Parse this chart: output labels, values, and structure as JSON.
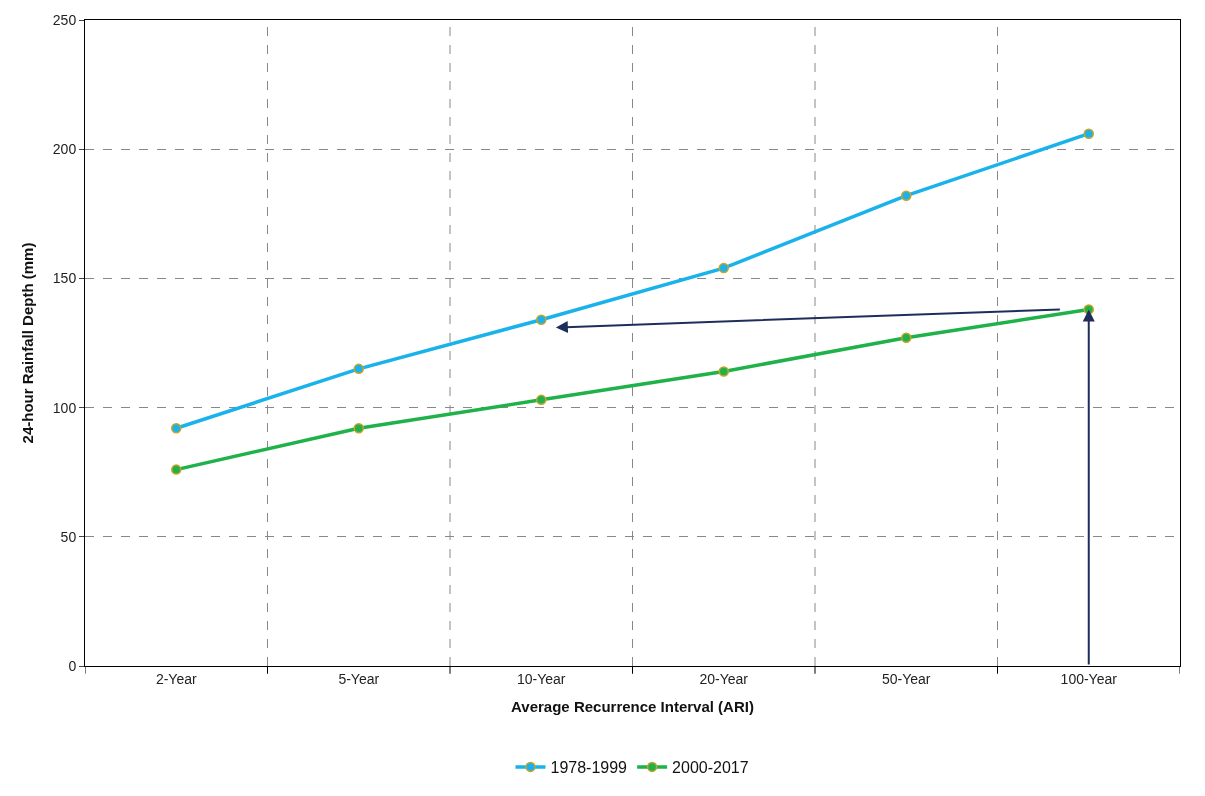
{
  "chart_data": {
    "type": "line",
    "xlabel": "Average Recurrence Interval (ARI)",
    "ylabel": "24-hour Rainfall Depth (mm)",
    "categories": [
      "2-Year",
      "5-Year",
      "10-Year",
      "20-Year",
      "50-Year",
      "100-Year"
    ],
    "series": [
      {
        "name": "1978-1999",
        "color": "#1ab2ea",
        "values": [
          92,
          115,
          134,
          154,
          182,
          206
        ]
      },
      {
        "name": "2000-2017",
        "color": "#1fb24a",
        "values": [
          76,
          92,
          103,
          114,
          127,
          138
        ]
      }
    ],
    "ylim": [
      0,
      250
    ],
    "yticks": [
      0,
      50,
      100,
      150,
      200,
      250
    ],
    "grid": true,
    "legend": "bottom",
    "marker": "circle",
    "line_style": "solid"
  }
}
